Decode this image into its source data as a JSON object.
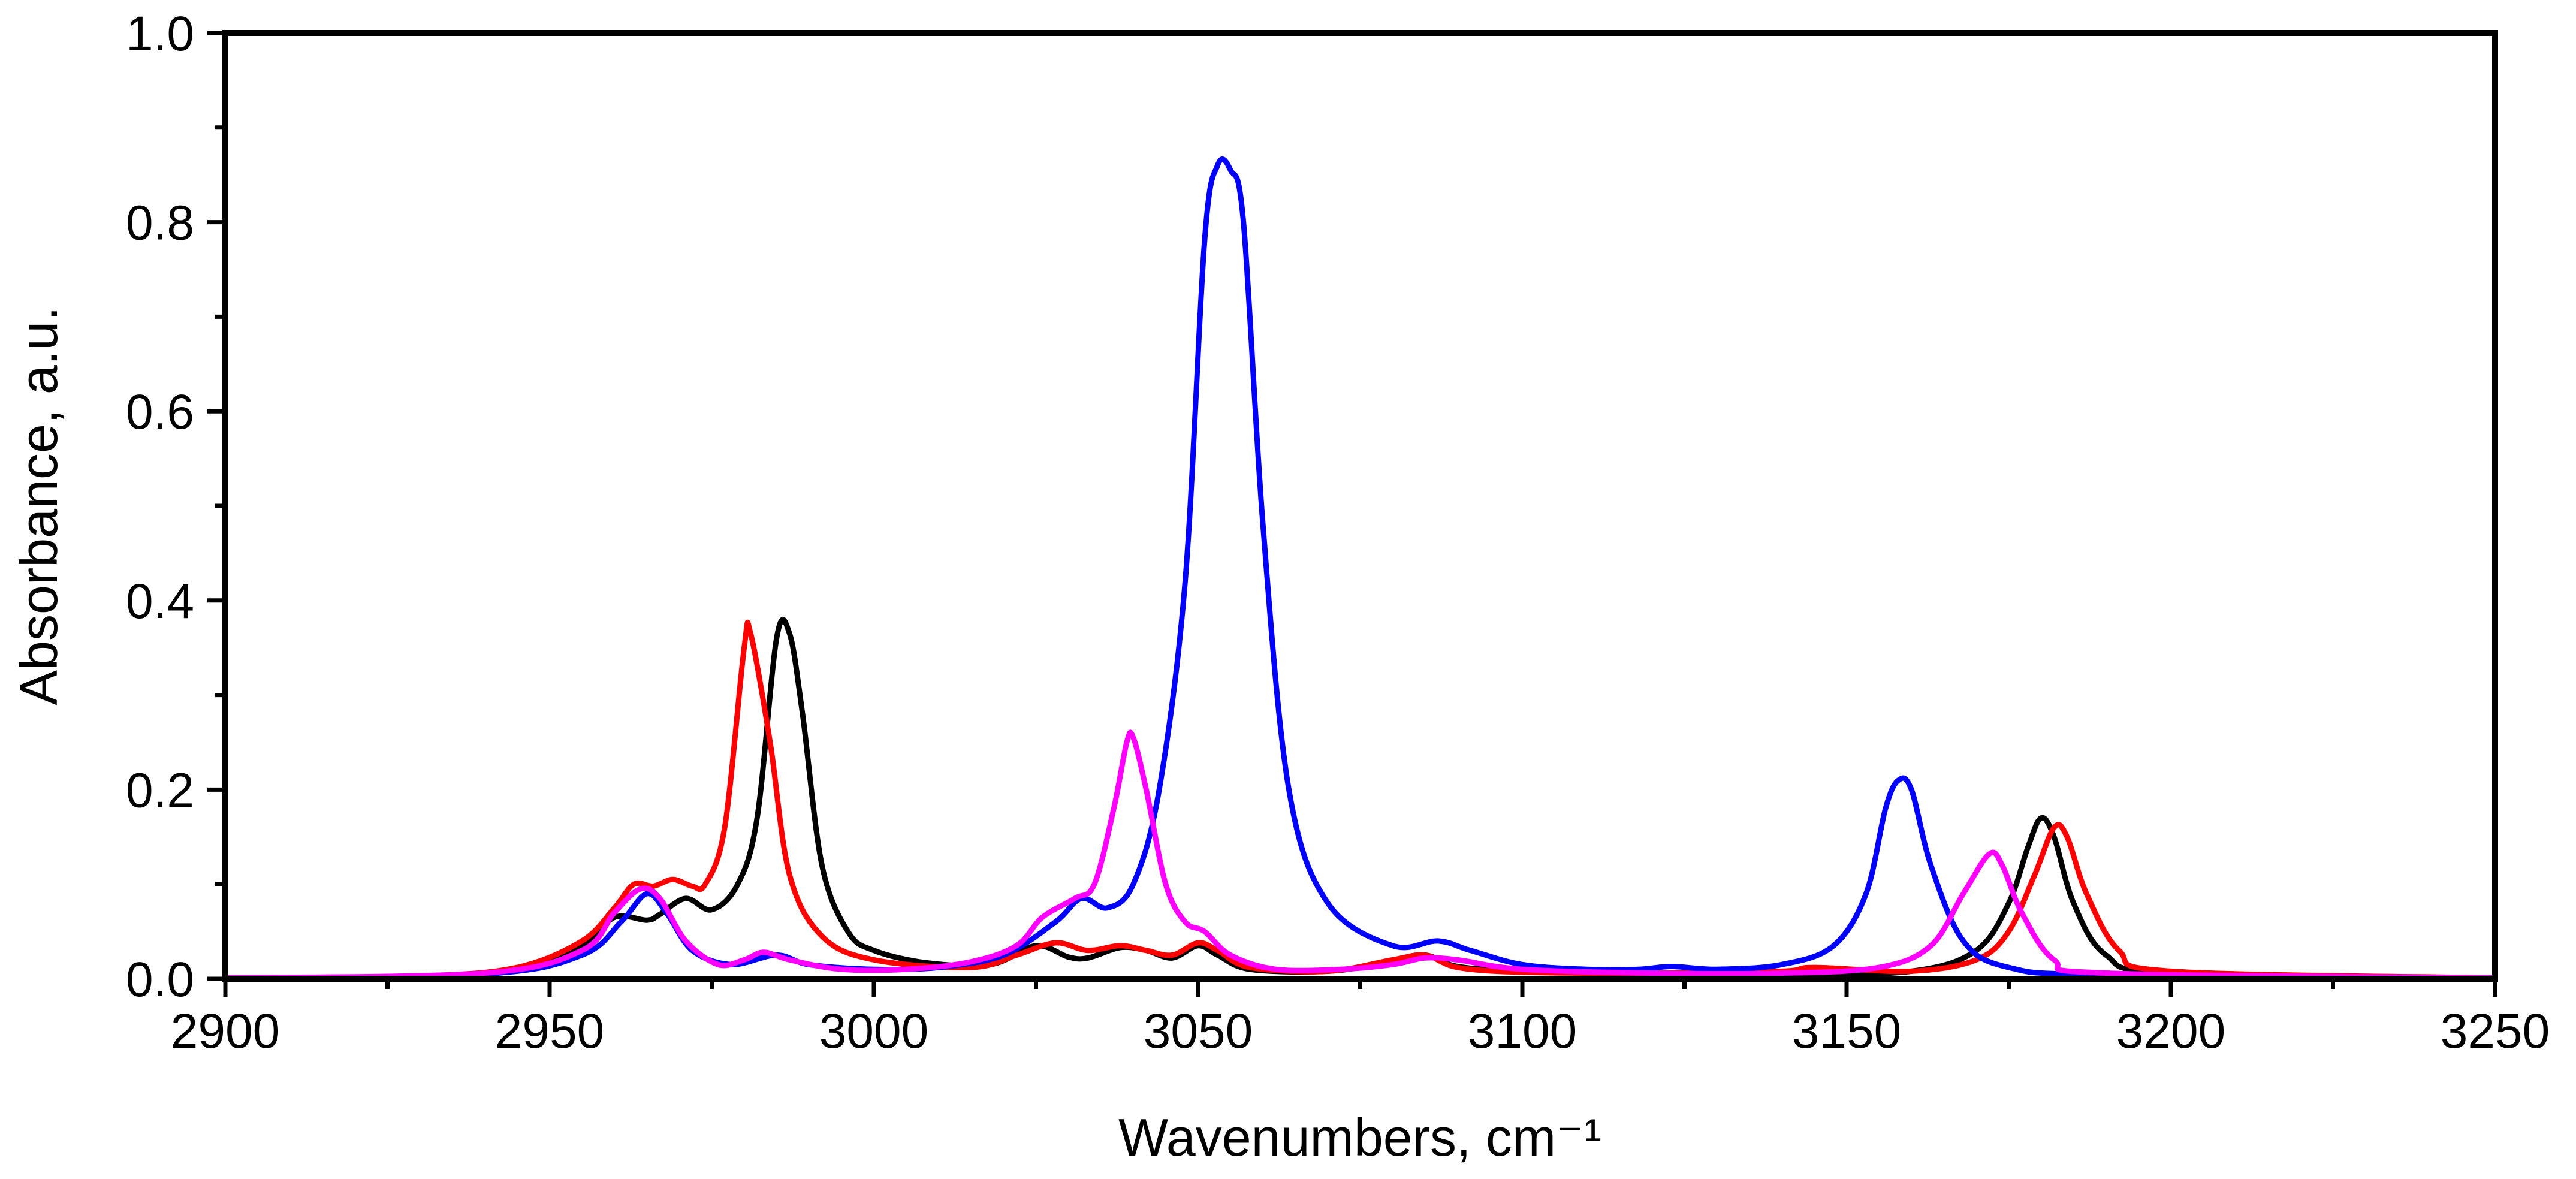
{
  "chart_data": {
    "type": "line",
    "xlabel": "Wavenumbers, cm⁻¹",
    "ylabel": "Absorbance, a.u.",
    "xlim": [
      2900,
      3250
    ],
    "ylim": [
      0,
      1.0
    ],
    "x_major_ticks": [
      2900,
      2950,
      3000,
      3050,
      3100,
      3150,
      3200,
      3250
    ],
    "x_tick_labels": [
      "2900",
      "2950",
      "3000",
      "3050",
      "3100",
      "3150",
      "3200",
      "3250"
    ],
    "x_minor_step": 25,
    "y_major_ticks": [
      0.0,
      0.2,
      0.4,
      0.6,
      0.8,
      1.0
    ],
    "y_tick_labels": [
      "0.0",
      "0.2",
      "0.4",
      "0.6",
      "0.8",
      "1.0"
    ],
    "y_minor_step": 0.1,
    "grid": false,
    "legend": "none",
    "series": [
      {
        "name": "black",
        "color": "#000000",
        "points": [
          [
            2900,
            0.001
          ],
          [
            2930,
            0.003
          ],
          [
            2945,
            0.01
          ],
          [
            2955,
            0.035
          ],
          [
            2960,
            0.065
          ],
          [
            2965,
            0.062
          ],
          [
            2967,
            0.068
          ],
          [
            2971,
            0.085
          ],
          [
            2975,
            0.073
          ],
          [
            2979,
            0.1
          ],
          [
            2982,
            0.17
          ],
          [
            2985,
            0.36
          ],
          [
            2987,
            0.365
          ],
          [
            2989,
            0.28
          ],
          [
            2992,
            0.12
          ],
          [
            2996,
            0.05
          ],
          [
            3000,
            0.03
          ],
          [
            3008,
            0.017
          ],
          [
            3018,
            0.015
          ],
          [
            3025,
            0.035
          ],
          [
            3030,
            0.023
          ],
          [
            3033,
            0.022
          ],
          [
            3038,
            0.033
          ],
          [
            3042,
            0.03
          ],
          [
            3046,
            0.022
          ],
          [
            3050,
            0.035
          ],
          [
            3053,
            0.025
          ],
          [
            3058,
            0.01
          ],
          [
            3070,
            0.008
          ],
          [
            3080,
            0.018
          ],
          [
            3085,
            0.025
          ],
          [
            3090,
            0.013
          ],
          [
            3100,
            0.008
          ],
          [
            3120,
            0.005
          ],
          [
            3140,
            0.004
          ],
          [
            3160,
            0.008
          ],
          [
            3170,
            0.03
          ],
          [
            3175,
            0.08
          ],
          [
            3178,
            0.14
          ],
          [
            3180,
            0.17
          ],
          [
            3182,
            0.15
          ],
          [
            3185,
            0.08
          ],
          [
            3190,
            0.025
          ],
          [
            3200,
            0.006
          ],
          [
            3250,
            0.001
          ]
        ]
      },
      {
        "name": "red",
        "color": "#ff0000",
        "points": [
          [
            2900,
            0.001
          ],
          [
            2930,
            0.003
          ],
          [
            2945,
            0.012
          ],
          [
            2955,
            0.04
          ],
          [
            2960,
            0.075
          ],
          [
            2963,
            0.1
          ],
          [
            2966,
            0.098
          ],
          [
            2969,
            0.105
          ],
          [
            2972,
            0.098
          ],
          [
            2974,
            0.1
          ],
          [
            2977,
            0.16
          ],
          [
            2980,
            0.35
          ],
          [
            2981,
            0.365
          ],
          [
            2984,
            0.25
          ],
          [
            2987,
            0.11
          ],
          [
            2992,
            0.045
          ],
          [
            3000,
            0.02
          ],
          [
            3015,
            0.012
          ],
          [
            3022,
            0.025
          ],
          [
            3028,
            0.038
          ],
          [
            3033,
            0.03
          ],
          [
            3038,
            0.035
          ],
          [
            3042,
            0.03
          ],
          [
            3046,
            0.025
          ],
          [
            3050,
            0.038
          ],
          [
            3053,
            0.03
          ],
          [
            3058,
            0.012
          ],
          [
            3070,
            0.008
          ],
          [
            3080,
            0.02
          ],
          [
            3085,
            0.025
          ],
          [
            3090,
            0.012
          ],
          [
            3100,
            0.007
          ],
          [
            3120,
            0.006
          ],
          [
            3140,
            0.008
          ],
          [
            3145,
            0.012
          ],
          [
            3160,
            0.008
          ],
          [
            3170,
            0.02
          ],
          [
            3175,
            0.05
          ],
          [
            3179,
            0.11
          ],
          [
            3182,
            0.16
          ],
          [
            3184,
            0.15
          ],
          [
            3187,
            0.09
          ],
          [
            3192,
            0.03
          ],
          [
            3200,
            0.008
          ],
          [
            3250,
            0.001
          ]
        ]
      },
      {
        "name": "blue",
        "color": "#0000ff",
        "points": [
          [
            2900,
            0.001
          ],
          [
            2940,
            0.005
          ],
          [
            2955,
            0.025
          ],
          [
            2961,
            0.06
          ],
          [
            2965,
            0.09
          ],
          [
            2968,
            0.07
          ],
          [
            2972,
            0.03
          ],
          [
            2978,
            0.015
          ],
          [
            2985,
            0.025
          ],
          [
            2990,
            0.015
          ],
          [
            3000,
            0.01
          ],
          [
            3010,
            0.012
          ],
          [
            3020,
            0.025
          ],
          [
            3028,
            0.06
          ],
          [
            3032,
            0.085
          ],
          [
            3036,
            0.075
          ],
          [
            3040,
            0.1
          ],
          [
            3044,
            0.2
          ],
          [
            3048,
            0.42
          ],
          [
            3051,
            0.78
          ],
          [
            3053,
            0.86
          ],
          [
            3055,
            0.855
          ],
          [
            3057,
            0.8
          ],
          [
            3060,
            0.48
          ],
          [
            3064,
            0.2
          ],
          [
            3070,
            0.08
          ],
          [
            3080,
            0.035
          ],
          [
            3087,
            0.04
          ],
          [
            3092,
            0.03
          ],
          [
            3100,
            0.015
          ],
          [
            3110,
            0.01
          ],
          [
            3118,
            0.01
          ],
          [
            3123,
            0.013
          ],
          [
            3130,
            0.01
          ],
          [
            3140,
            0.015
          ],
          [
            3148,
            0.035
          ],
          [
            3153,
            0.09
          ],
          [
            3156,
            0.18
          ],
          [
            3158,
            0.21
          ],
          [
            3160,
            0.2
          ],
          [
            3163,
            0.12
          ],
          [
            3168,
            0.04
          ],
          [
            3175,
            0.012
          ],
          [
            3190,
            0.004
          ],
          [
            3250,
            0.001
          ]
        ]
      },
      {
        "name": "magenta",
        "color": "#ff00ff",
        "points": [
          [
            2900,
            0.001
          ],
          [
            2940,
            0.006
          ],
          [
            2955,
            0.03
          ],
          [
            2960,
            0.07
          ],
          [
            2964,
            0.095
          ],
          [
            2967,
            0.085
          ],
          [
            2971,
            0.04
          ],
          [
            2976,
            0.015
          ],
          [
            2980,
            0.02
          ],
          [
            2983,
            0.028
          ],
          [
            2987,
            0.02
          ],
          [
            2995,
            0.01
          ],
          [
            3005,
            0.01
          ],
          [
            3015,
            0.018
          ],
          [
            3022,
            0.035
          ],
          [
            3026,
            0.065
          ],
          [
            3031,
            0.085
          ],
          [
            3034,
            0.1
          ],
          [
            3037,
            0.18
          ],
          [
            3039,
            0.25
          ],
          [
            3040,
            0.255
          ],
          [
            3042,
            0.2
          ],
          [
            3045,
            0.1
          ],
          [
            3048,
            0.06
          ],
          [
            3051,
            0.05
          ],
          [
            3055,
            0.025
          ],
          [
            3062,
            0.01
          ],
          [
            3072,
            0.01
          ],
          [
            3080,
            0.015
          ],
          [
            3085,
            0.022
          ],
          [
            3090,
            0.02
          ],
          [
            3100,
            0.01
          ],
          [
            3120,
            0.006
          ],
          [
            3140,
            0.006
          ],
          [
            3155,
            0.012
          ],
          [
            3163,
            0.035
          ],
          [
            3168,
            0.09
          ],
          [
            3172,
            0.132
          ],
          [
            3174,
            0.12
          ],
          [
            3177,
            0.07
          ],
          [
            3182,
            0.02
          ],
          [
            3190,
            0.006
          ],
          [
            3250,
            0.001
          ]
        ]
      }
    ]
  }
}
